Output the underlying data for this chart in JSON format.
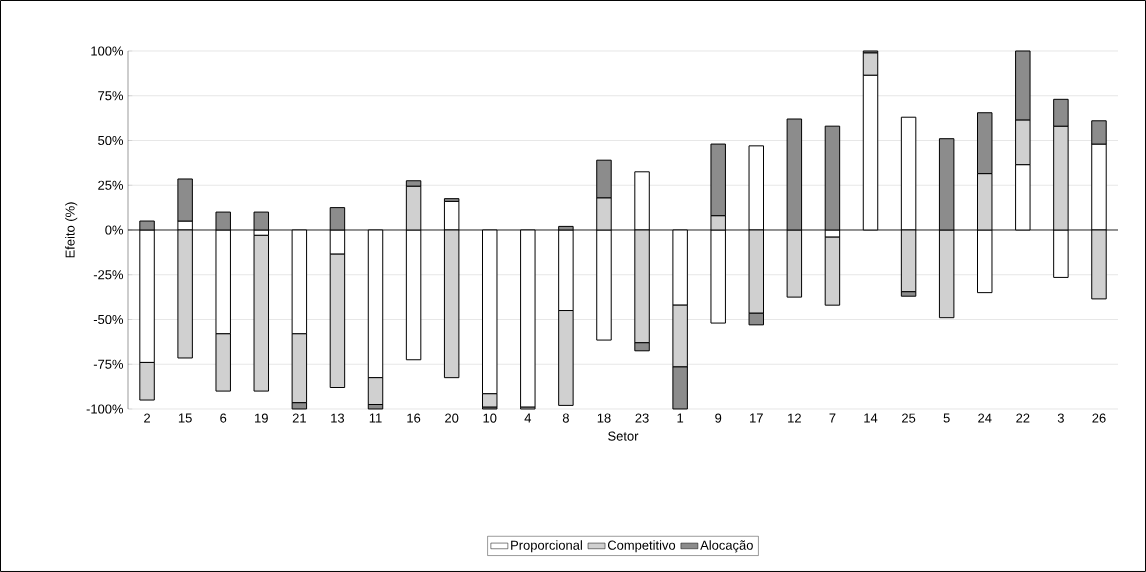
{
  "chart_data": {
    "type": "bar",
    "stacked": true,
    "xlabel": "Setor",
    "ylabel": "Efeito (%)",
    "categories": [
      "2",
      "15",
      "6",
      "19",
      "21",
      "13",
      "11",
      "16",
      "20",
      "10",
      "4",
      "8",
      "18",
      "23",
      "1",
      "9",
      "17",
      "12",
      "7",
      "14",
      "25",
      "5",
      "24",
      "22",
      "3",
      "26"
    ],
    "series": [
      {
        "name": "Proporcional",
        "color": "#ffffff",
        "values": [
          -74,
          5,
          -58,
          -3,
          -58,
          -13.5,
          -82.5,
          -72.5,
          16,
          -91.5,
          -99,
          -45,
          -61.5,
          32.5,
          -42,
          -52,
          47,
          0,
          -4,
          86.5,
          63,
          0,
          -35,
          36.5,
          -26.5,
          48
        ]
      },
      {
        "name": "Competitivo",
        "color": "#d0d0d0",
        "values": [
          -21,
          -71.5,
          -32,
          -87,
          -38.5,
          -74.5,
          -15,
          24.5,
          -82.5,
          -7.5,
          -1,
          -53,
          18,
          -63,
          -34.5,
          8,
          -46.5,
          -37.5,
          -38,
          12.5,
          -34.5,
          -49,
          31.5,
          25,
          58,
          -38.5
        ]
      },
      {
        "name": "Alocação",
        "color": "#8c8c8c",
        "values": [
          5,
          23.5,
          10,
          10,
          -3.5,
          12.5,
          -2.5,
          3,
          1.5,
          -1,
          0,
          2,
          21,
          -4.5,
          -23.5,
          40,
          -6.5,
          62,
          58,
          1,
          -2.5,
          51,
          34,
          38.5,
          15,
          13
        ]
      }
    ],
    "ylim": [
      -100,
      100
    ],
    "yticks": [
      {
        "value": -100,
        "label": "-100%"
      },
      {
        "value": -75,
        "label": "-75%"
      },
      {
        "value": -50,
        "label": "-50%"
      },
      {
        "value": -25,
        "label": "-25%"
      },
      {
        "value": 0,
        "label": "0%"
      },
      {
        "value": 25,
        "label": "25%"
      },
      {
        "value": 50,
        "label": "50%"
      },
      {
        "value": 75,
        "label": "75%"
      },
      {
        "value": 100,
        "label": "100%"
      }
    ],
    "grid": "y",
    "legend": "bottom"
  }
}
